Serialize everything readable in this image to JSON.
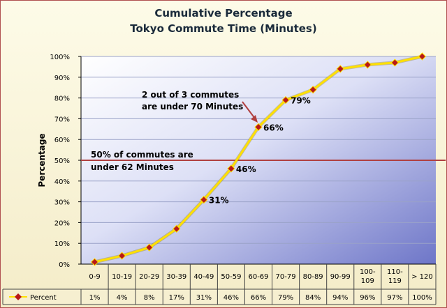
{
  "chart_data": {
    "type": "line",
    "title": "Cumulative Percentage",
    "subtitle": "Tokyo Commute Time (Minutes)",
    "ylabel": "Percentage",
    "xlabel": "",
    "ylim": [
      0,
      100
    ],
    "y_ticks": [
      "0%",
      "10%",
      "20%",
      "30%",
      "40%",
      "50%",
      "60%",
      "70%",
      "80%",
      "90%",
      "100%"
    ],
    "categories": [
      "0-9",
      "10-19",
      "20-29",
      "30-39",
      "40-49",
      "50-59",
      "60-69",
      "70-79",
      "80-89",
      "90-99",
      "100-109",
      "110-119",
      "> 120"
    ],
    "series": [
      {
        "name": "Percent",
        "values": [
          1,
          4,
          8,
          17,
          31,
          46,
          66,
          79,
          84,
          94,
          96,
          97,
          100
        ],
        "table_values": [
          "1%",
          "4%",
          "8%",
          "17%",
          "31%",
          "46%",
          "66%",
          "79%",
          "84%",
          "94%",
          "96%",
          "97%",
          "100%"
        ],
        "line_color": "#ffe000",
        "marker_color": "#b81818"
      }
    ],
    "data_labels": [
      {
        "index": 4,
        "text": "31%"
      },
      {
        "index": 5,
        "text": "46%"
      },
      {
        "index": 6,
        "text": "66%"
      },
      {
        "index": 7,
        "text": "79%"
      }
    ],
    "reference_line": {
      "value": 50,
      "color": "#b04040"
    },
    "annotations": [
      {
        "line1": "2 out of 3 commutes",
        "line2": "are under 70 Minutes"
      },
      {
        "line1": "50% of commutes are",
        "line2": "under 62 Minutes"
      }
    ],
    "grid": true,
    "legend": "data-table"
  }
}
